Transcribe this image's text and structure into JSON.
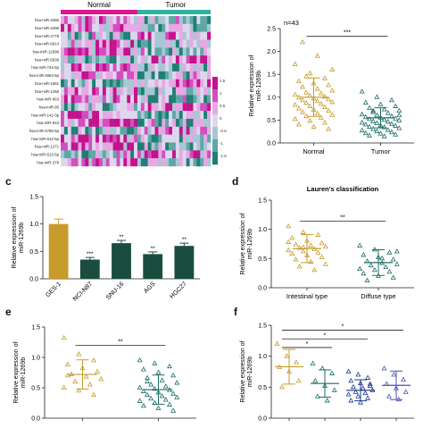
{
  "panels": {
    "c": "c",
    "d": "d",
    "e": "e",
    "f": "f"
  },
  "chart_data": [
    {
      "id": "a",
      "type": "heatmap",
      "groups": [
        "Normal",
        "Tumor"
      ],
      "group_colors": [
        "#e0148c",
        "#2bb3a3"
      ],
      "rows": [
        "hsa-miR-4286",
        "hsa-miR-4298",
        "hsa-miR-4778",
        "hsa-miR-6814",
        "hsa-miR-1269b",
        "hsa-miR-6939",
        "hsa-miR-744-5p",
        "hsa-miR-4664-5p",
        "hsa-miR-1581",
        "hsa-miR-1258",
        "hsa-miR-663",
        "hsa-miR-95",
        "hsa-miR-142-3p",
        "hsa-miR-943",
        "hsa-miR-4795-5p",
        "hsa-miR-612-5p",
        "hsa-miR-1271",
        "hsa-miR-613-5p",
        "hsa-miR-378"
      ],
      "colorbar_ticks": [
        "1.5",
        "1",
        "0.5",
        "0",
        "-0.5",
        "-1",
        "-1.5"
      ],
      "colors": [
        "#c4128c",
        "#d24ec0",
        "#e7a8e4",
        "#ddd7ee",
        "#a7c7d4",
        "#5fa7a7",
        "#1f7f72"
      ]
    },
    {
      "id": "b",
      "type": "scatter",
      "annotation": "n=43",
      "ylabel": "Relative expression of miR-1269b",
      "categories": [
        "Normal",
        "Tumor"
      ],
      "yticks": [
        0.0,
        0.5,
        1.0,
        1.5,
        2.0,
        2.5
      ],
      "ylim": [
        0,
        2.5
      ],
      "colors": [
        "#c79b2b",
        "#1a6e63"
      ],
      "significance": [
        {
          "from": 0,
          "to": 1,
          "label": "***",
          "y": 2.33
        }
      ],
      "summary": [
        {
          "mean": 1.0,
          "sd": 0.42
        },
        {
          "mean": 0.55,
          "sd": 0.22
        }
      ],
      "points": [
        [
          1.72,
          1.52,
          1.41,
          1.35,
          1.3,
          1.26,
          1.22,
          1.18,
          1.14,
          1.1,
          1.08,
          1.05,
          1.03,
          1.01,
          0.99,
          0.97,
          0.95,
          0.93,
          0.91,
          0.89,
          0.87,
          0.85,
          0.83,
          0.8,
          0.78,
          0.75,
          0.72,
          0.7,
          0.67,
          0.64,
          0.61,
          0.58,
          0.55,
          0.52,
          0.48,
          0.44,
          0.4,
          0.35,
          0.3,
          2.2,
          1.9,
          1.6,
          1.45
        ],
        [
          1.12,
          1.0,
          0.93,
          0.88,
          0.84,
          0.8,
          0.76,
          0.73,
          0.7,
          0.67,
          0.65,
          0.62,
          0.6,
          0.58,
          0.56,
          0.55,
          0.53,
          0.52,
          0.5,
          0.49,
          0.47,
          0.46,
          0.44,
          0.43,
          0.41,
          0.4,
          0.38,
          0.37,
          0.35,
          0.34,
          0.32,
          0.3,
          0.28,
          0.27,
          0.25,
          0.23,
          0.21,
          0.2,
          0.18,
          0.16,
          0.14,
          0.6,
          0.7
        ]
      ]
    },
    {
      "id": "c",
      "type": "bar",
      "ylabel": "Relative expression of miR-1269b",
      "categories": [
        "GES-1",
        "NCI-N87",
        "SNU-16",
        "AGS",
        "HGC27"
      ],
      "values": [
        1.0,
        0.35,
        0.65,
        0.45,
        0.6
      ],
      "errors": [
        0.09,
        0.04,
        0.05,
        0.04,
        0.05
      ],
      "sig": [
        "",
        "***",
        "**",
        "**",
        "**"
      ],
      "colors": [
        "#c79b2b",
        "#1a4d3f",
        "#1a4d3f",
        "#1a4d3f",
        "#1a4d3f"
      ],
      "yticks": [
        0.0,
        0.5,
        1.0,
        1.5
      ],
      "ylim": [
        0,
        1.5
      ]
    },
    {
      "id": "d",
      "type": "scatter",
      "title": "Lauren's classification",
      "ylabel": "Relative expression of miR-1269b",
      "categories": [
        "Intestinal type",
        "Diffuse type"
      ],
      "yticks": [
        0.0,
        0.5,
        1.0,
        1.5
      ],
      "ylim": [
        0,
        1.5
      ],
      "colors": [
        "#c79b2b",
        "#1a6e63"
      ],
      "significance": [
        {
          "from": 0,
          "to": 1,
          "label": "**",
          "y": 1.14
        }
      ],
      "summary": [
        {
          "mean": 0.67,
          "sd": 0.24
        },
        {
          "mean": 0.43,
          "sd": 0.22
        }
      ],
      "points": [
        [
          1.05,
          0.95,
          0.9,
          0.85,
          0.8,
          0.76,
          0.74,
          0.72,
          0.7,
          0.68,
          0.66,
          0.64,
          0.62,
          0.6,
          0.58,
          0.55,
          0.52,
          0.48,
          0.44,
          0.4,
          0.36,
          0.3,
          0.78,
          0.69
        ],
        [
          0.72,
          0.65,
          0.6,
          0.56,
          0.52,
          0.48,
          0.45,
          0.42,
          0.4,
          0.38,
          0.35,
          0.32,
          0.3,
          0.27,
          0.24,
          0.2,
          0.17,
          0.12,
          0.5,
          0.62
        ]
      ]
    },
    {
      "id": "e",
      "type": "scatter",
      "ylabel": "Relative expression of miR-1269b",
      "categories": [
        "",
        ""
      ],
      "yticks": [
        0.0,
        0.5,
        1.0,
        1.5
      ],
      "ylim": [
        0,
        1.5
      ],
      "colors": [
        "#c79b2b",
        "#1a6e63"
      ],
      "significance": [
        {
          "from": 0,
          "to": 1,
          "label": "**",
          "y": 1.2
        }
      ],
      "summary": [
        {
          "mean": 0.72,
          "sd": 0.24
        },
        {
          "mean": 0.47,
          "sd": 0.24
        }
      ],
      "points": [
        [
          1.32,
          1.05,
          0.95,
          0.88,
          0.82,
          0.76,
          0.72,
          0.68,
          0.64,
          0.6,
          0.55,
          0.5,
          0.45,
          0.38,
          0.7
        ],
        [
          0.95,
          0.9,
          0.85,
          0.8,
          0.75,
          0.7,
          0.66,
          0.62,
          0.58,
          0.55,
          0.52,
          0.5,
          0.48,
          0.46,
          0.44,
          0.42,
          0.4,
          0.38,
          0.36,
          0.34,
          0.32,
          0.3,
          0.28,
          0.25,
          0.22,
          0.2,
          0.16,
          0.12,
          0.6
        ]
      ]
    },
    {
      "id": "f",
      "type": "scatter",
      "ylabel": "Relative expression of miR-1269b",
      "categories": [
        "",
        "",
        "",
        ""
      ],
      "yticks": [
        0.0,
        0.5,
        1.0,
        1.5
      ],
      "ylim": [
        0,
        1.5
      ],
      "colors": [
        "#c79b2b",
        "#1a6e63",
        "#1a3a8a",
        "#4d4dc0"
      ],
      "significance": [
        {
          "from": 0,
          "to": 3,
          "label": "*",
          "y": 1.42
        },
        {
          "from": 0,
          "to": 2,
          "label": "*",
          "y": 1.28
        },
        {
          "from": 0,
          "to": 1,
          "label": "*",
          "y": 1.14
        }
      ],
      "summary": [
        {
          "mean": 0.83,
          "sd": 0.28
        },
        {
          "mean": 0.56,
          "sd": 0.22
        },
        {
          "mean": 0.45,
          "sd": 0.17
        },
        {
          "mean": 0.53,
          "sd": 0.23
        }
      ],
      "points": [
        [
          1.2,
          1.0,
          0.9,
          0.82,
          0.75,
          0.6,
          0.5
        ],
        [
          0.88,
          0.8,
          0.72,
          0.6,
          0.52,
          0.45,
          0.35,
          0.28
        ],
        [
          0.75,
          0.7,
          0.65,
          0.6,
          0.56,
          0.52,
          0.5,
          0.48,
          0.45,
          0.42,
          0.4,
          0.38,
          0.35,
          0.32,
          0.28,
          0.25,
          0.55
        ],
        [
          0.8,
          0.7,
          0.62,
          0.55,
          0.48,
          0.42,
          0.35,
          0.3
        ]
      ]
    }
  ]
}
